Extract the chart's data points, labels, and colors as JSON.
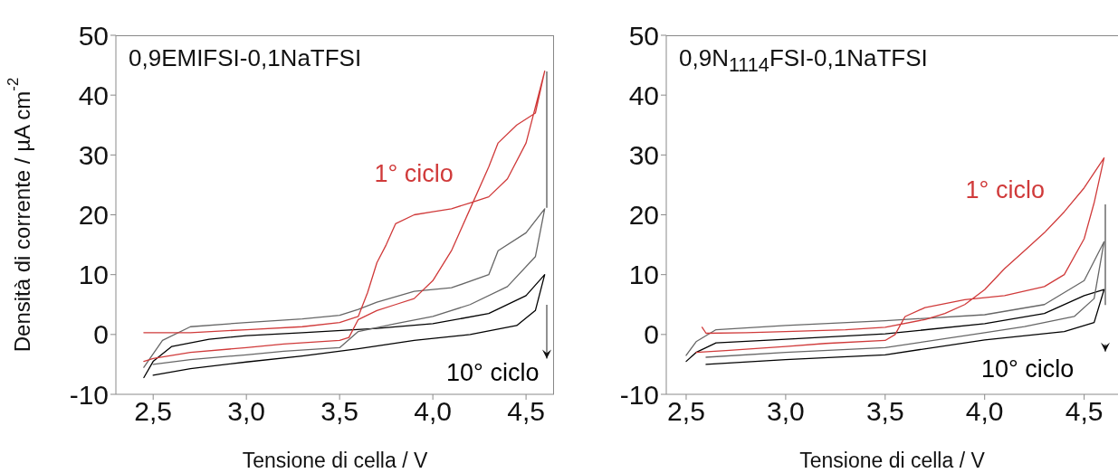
{
  "chart_data": [
    {
      "type": "line",
      "title": "0,9EMIFSI-0,1NaTFSI",
      "xlabel": "Tensione di cella / V",
      "ylabel": "Densità di corrente / µA cm$^{-2}$",
      "xlim": [
        2.3,
        4.65
      ],
      "ylim": [
        -10,
        50
      ],
      "xticks": [
        {
          "value": 2.5,
          "label": "2,5"
        },
        {
          "value": 3,
          "label": "3,0"
        },
        {
          "value": 3.5,
          "label": "3,5"
        },
        {
          "value": 4,
          "label": "4,0"
        },
        {
          "value": 4.5,
          "label": "4,5"
        }
      ],
      "yticks": [
        -10,
        0,
        10,
        20,
        30,
        40,
        50
      ],
      "series": [
        {
          "name": "10° ciclo",
          "color": "#000000",
          "x": [
            2.45,
            2.5,
            2.6,
            2.8,
            3.0,
            3.3,
            3.7,
            4.0,
            4.3,
            4.5,
            4.6,
            4.55,
            4.45,
            4.2,
            3.9,
            3.6,
            3.3,
            3.0,
            2.7,
            2.5
          ],
          "values": [
            -7.2,
            -4.5,
            -2,
            -0.8,
            -0.2,
            0.3,
            1,
            1.8,
            3.5,
            6.5,
            10,
            4,
            1.5,
            0,
            -1,
            -2.4,
            -3.6,
            -4.6,
            -5.7,
            -6.8
          ]
        },
        {
          "color": "#666666",
          "x": [
            2.45,
            2.55,
            2.7,
            3.0,
            3.3,
            3.5,
            3.6,
            3.7,
            3.9,
            4.1,
            4.3,
            4.35,
            4.5,
            4.6,
            4.55,
            4.4,
            4.2,
            4.0,
            3.8,
            3.6,
            3.5,
            3.2,
            3.0,
            2.7,
            2.5
          ],
          "values": [
            -5.5,
            -1,
            1.3,
            2,
            2.6,
            3.2,
            4.2,
            5.4,
            7.2,
            7.8,
            10,
            14,
            17,
            21,
            13,
            8,
            5,
            3,
            1.8,
            0.5,
            -2.2,
            -2.8,
            -3.4,
            -4.2,
            -5
          ]
        },
        {
          "name": "1° ciclo",
          "color": "#d03a3a",
          "x": [
            2.45,
            2.7,
            3.0,
            3.3,
            3.5,
            3.6,
            3.65,
            3.7,
            3.75,
            3.8,
            3.9,
            4.0,
            4.1,
            4.2,
            4.3,
            4.4,
            4.5,
            4.6,
            4.55,
            4.45,
            4.35,
            4.3,
            4.2,
            4.1,
            4.0,
            3.9,
            3.8,
            3.7,
            3.6,
            3.55,
            3.5,
            3.2,
            3.0,
            2.7,
            2.5,
            2.45
          ],
          "values": [
            0.3,
            0.3,
            0.8,
            1.3,
            2,
            3,
            7,
            12,
            15,
            18.5,
            20,
            20.5,
            21,
            22,
            23,
            26,
            32,
            44,
            37,
            35,
            32,
            28,
            21,
            14,
            9,
            6,
            5,
            4,
            2.5,
            -0.5,
            -1,
            -1.6,
            -2.2,
            -3,
            -4,
            -4.5
          ]
        }
      ]
    },
    {
      "type": "line",
      "title": "0,9N$_{1114}$FSI-0,1NaTFSI",
      "xlabel": "Tensione di cella / V",
      "xlim": [
        2.4,
        4.67
      ],
      "ylim": [
        -10,
        50
      ],
      "xticks": [
        {
          "value": 2.5,
          "label": "2,5"
        },
        {
          "value": 3,
          "label": "3,0"
        },
        {
          "value": 3.5,
          "label": "3,5"
        },
        {
          "value": 4,
          "label": "4,0"
        },
        {
          "value": 4.5,
          "label": "4,5"
        }
      ],
      "yticks": [
        -10,
        0,
        10,
        20,
        30,
        40,
        50
      ],
      "series": [
        {
          "name": "10° ciclo",
          "color": "#000000",
          "x": [
            2.5,
            2.55,
            2.65,
            3.0,
            3.5,
            4.0,
            4.3,
            4.5,
            4.6,
            4.55,
            4.4,
            4.0,
            3.5,
            3.0,
            2.6
          ],
          "values": [
            -4.5,
            -3,
            -1.4,
            -0.8,
            0.1,
            1.8,
            3.5,
            6.5,
            7.5,
            2,
            0.5,
            -0.9,
            -3.4,
            -4.2,
            -5
          ]
        },
        {
          "color": "#666666",
          "x": [
            2.5,
            2.55,
            2.65,
            3.0,
            3.5,
            4.0,
            4.3,
            4.5,
            4.6,
            4.55,
            4.45,
            4.2,
            4.0,
            3.5,
            3.0,
            2.6
          ],
          "values": [
            -3.5,
            -1.2,
            0.8,
            1.5,
            2.3,
            3.3,
            5,
            9,
            15.5,
            6,
            3,
            1.3,
            0.3,
            -2.2,
            -3,
            -3.8
          ]
        },
        {
          "name": "1° ciclo",
          "color": "#d03a3a",
          "x": [
            2.58,
            2.6,
            2.8,
            3.0,
            3.3,
            3.5,
            3.7,
            3.8,
            3.9,
            4.0,
            4.1,
            4.2,
            4.3,
            4.4,
            4.5,
            4.6,
            4.55,
            4.5,
            4.4,
            4.3,
            4.1,
            3.9,
            3.7,
            3.6,
            3.55,
            3.5,
            3.2,
            3.0,
            2.7,
            2.55
          ],
          "values": [
            1.2,
            0.2,
            0.3,
            0.5,
            0.8,
            1.2,
            2.5,
            3.5,
            5,
            7.5,
            11,
            14,
            17,
            20.5,
            24.5,
            29.5,
            22,
            16,
            10,
            8,
            6.5,
            5.8,
            4.5,
            3,
            0,
            -1,
            -1.5,
            -2,
            -2.7,
            -3
          ]
        }
      ]
    }
  ]
}
